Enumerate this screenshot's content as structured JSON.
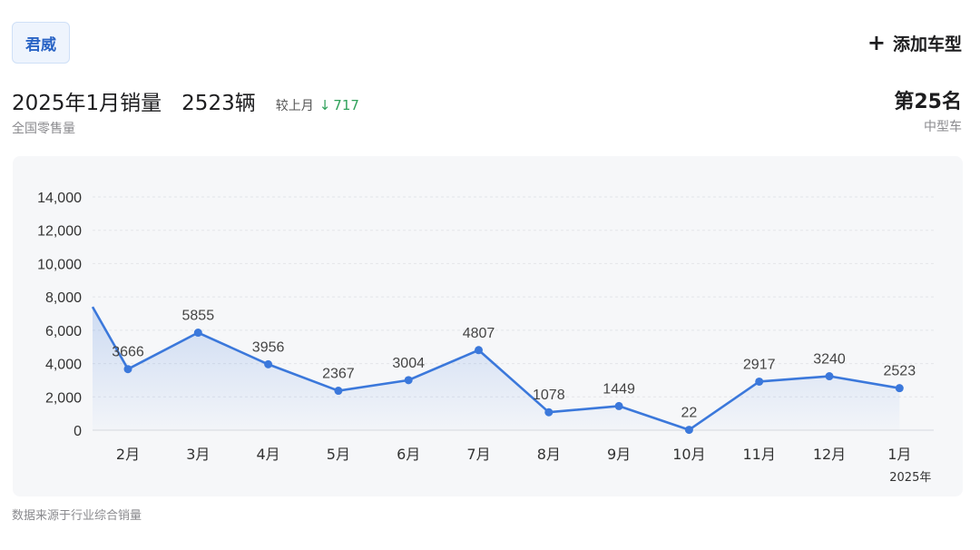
{
  "model_tag": "君威",
  "add_model": {
    "icon": "plus-icon",
    "label": "添加车型"
  },
  "headline": {
    "title": "2025年1月销量",
    "units": "2523辆",
    "compare_label": "较上月",
    "trend_icon": "arrow-down-icon",
    "delta": "717",
    "subtitle": "全国零售量"
  },
  "rank": {
    "label": "第25名",
    "category": "中型车"
  },
  "footnote": "数据来源于行业综合销量",
  "colors": {
    "line": "#3b78db",
    "point": "#3b78db",
    "delta": "#2fa15a",
    "tag_text": "#2a64c5"
  },
  "chart_data": {
    "type": "line",
    "categories": [
      "2月",
      "3月",
      "4月",
      "5月",
      "6月",
      "7月",
      "8月",
      "9月",
      "10月",
      "11月",
      "12月",
      "1月"
    ],
    "category_sublabels": [
      "",
      "",
      "",
      "",
      "",
      "",
      "",
      "",
      "",
      "",
      "",
      "2025年"
    ],
    "values": [
      3666,
      5855,
      3956,
      2367,
      3004,
      4807,
      1078,
      1449,
      22,
      2917,
      3240,
      2523
    ],
    "data_labels": [
      "3666",
      "5855",
      "3956",
      "2367",
      "3004",
      "4807",
      "1078",
      "1449",
      "22",
      "2917",
      "3240",
      "2523"
    ],
    "y_ticks": [
      "0",
      "2,000",
      "4,000",
      "6,000",
      "8,000",
      "10,000",
      "12,000",
      "14,000"
    ],
    "ylim": [
      0,
      14000
    ],
    "leading_value": 7400,
    "grid": true,
    "area_fill": true
  }
}
